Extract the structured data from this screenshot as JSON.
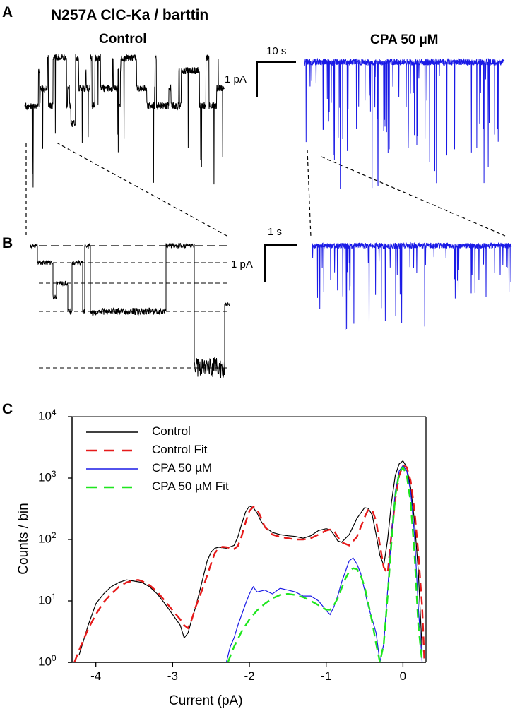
{
  "figure": {
    "title": "N257A ClC-Ka / barttin",
    "panels": {
      "a": "A",
      "b": "B",
      "c": "C"
    },
    "conditions": {
      "control": "Control",
      "cpa": "CPA 50 µM"
    },
    "scale_bars": {
      "a_time": "10 s",
      "a_current": "1 pA",
      "b_time": "1 s",
      "b_current": "1 pA"
    },
    "colors": {
      "control": "#000000",
      "cpa": "#1a1ae6",
      "control_fit": "#e61a1a",
      "cpa_fit": "#1ee61e"
    }
  },
  "chart_data": {
    "type": "line",
    "xlabel": "Current (pA)",
    "ylabel": "Counts / bin",
    "yscale": "log",
    "xlim": [
      -4.31,
      0.3
    ],
    "ylim": [
      1,
      10000
    ],
    "xticks": [
      -4,
      -3,
      -2,
      -1,
      0
    ],
    "xtick_labels": [
      "-4",
      "-3",
      "-2",
      "-1",
      "0"
    ],
    "yticks": [
      1,
      10,
      100,
      1000,
      10000
    ],
    "ytick_labels": [
      {
        "base": "10",
        "exp": "0"
      },
      {
        "base": "10",
        "exp": "1"
      },
      {
        "base": "10",
        "exp": "2"
      },
      {
        "base": "10",
        "exp": "3"
      },
      {
        "base": "10",
        "exp": "4"
      }
    ],
    "legend_position": "top-left",
    "series": [
      {
        "name": "Control",
        "style": "solid",
        "color": "#000000",
        "x": [
          -4.22,
          -4.15,
          -4.1,
          -4.05,
          -4.0,
          -3.9,
          -3.8,
          -3.7,
          -3.6,
          -3.5,
          -3.4,
          -3.3,
          -3.2,
          -3.1,
          -3.0,
          -2.9,
          -2.85,
          -2.8,
          -2.75,
          -2.7,
          -2.65,
          -2.6,
          -2.55,
          -2.5,
          -2.45,
          -2.4,
          -2.3,
          -2.2,
          -2.15,
          -2.1,
          -2.05,
          -2.0,
          -1.95,
          -1.9,
          -1.85,
          -1.8,
          -1.7,
          -1.6,
          -1.5,
          -1.4,
          -1.3,
          -1.2,
          -1.1,
          -1.0,
          -0.95,
          -0.9,
          -0.85,
          -0.8,
          -0.7,
          -0.6,
          -0.5,
          -0.45,
          -0.4,
          -0.35,
          -0.3,
          -0.25,
          -0.2,
          -0.15,
          -0.1,
          -0.05,
          0.0,
          0.05,
          0.1,
          0.15,
          0.2,
          0.25
        ],
        "y": [
          1.3,
          2.5,
          4,
          6,
          9,
          13,
          17,
          20,
          22,
          21,
          20,
          17,
          13,
          9,
          6,
          4,
          2.5,
          3,
          5,
          8,
          14,
          25,
          45,
          62,
          72,
          75,
          72,
          80,
          110,
          180,
          280,
          350,
          330,
          270,
          200,
          160,
          130,
          120,
          115,
          112,
          105,
          115,
          140,
          150,
          145,
          120,
          95,
          90,
          120,
          220,
          330,
          320,
          250,
          120,
          55,
          38,
          100,
          400,
          1100,
          1700,
          1900,
          1500,
          700,
          200,
          30,
          1.5
        ]
      },
      {
        "name": "Control Fit",
        "style": "dashed",
        "color": "#e61a1a",
        "x": [
          -4.28,
          -4.2,
          -4.1,
          -4.0,
          -3.9,
          -3.8,
          -3.7,
          -3.6,
          -3.5,
          -3.45,
          -3.4,
          -3.3,
          -3.2,
          -3.1,
          -3.0,
          -2.9,
          -2.85,
          -2.8,
          -2.75,
          -2.7,
          -2.6,
          -2.5,
          -2.45,
          -2.4,
          -2.35,
          -2.3,
          -2.2,
          -2.15,
          -2.1,
          -2.05,
          -2.0,
          -1.95,
          -1.9,
          -1.85,
          -1.8,
          -1.7,
          -1.6,
          -1.5,
          -1.4,
          -1.3,
          -1.2,
          -1.1,
          -1.0,
          -0.95,
          -0.9,
          -0.85,
          -0.8,
          -0.7,
          -0.6,
          -0.5,
          -0.45,
          -0.4,
          -0.35,
          -0.3,
          -0.25,
          -0.2,
          -0.15,
          -0.1,
          -0.05,
          0.0,
          0.05,
          0.1,
          0.15,
          0.2,
          0.25,
          0.28
        ],
        "y": [
          1,
          1.8,
          3.5,
          6,
          9.5,
          13,
          17,
          20,
          21.5,
          22,
          21,
          18,
          14,
          10,
          7,
          5,
          4,
          3.6,
          5,
          8,
          17,
          40,
          60,
          72,
          76,
          75,
          70,
          78,
          115,
          190,
          290,
          340,
          310,
          230,
          160,
          120,
          110,
          105,
          100,
          100,
          105,
          120,
          140,
          145,
          140,
          110,
          90,
          80,
          110,
          230,
          310,
          300,
          200,
          80,
          35,
          28,
          120,
          450,
          1100,
          1600,
          1500,
          900,
          300,
          60,
          8,
          1
        ]
      },
      {
        "name": "CPA 50 µM",
        "style": "solid",
        "color": "#1a1ae6",
        "x": [
          -2.3,
          -2.25,
          -2.2,
          -2.15,
          -2.1,
          -2.05,
          -2.0,
          -1.95,
          -1.9,
          -1.8,
          -1.7,
          -1.6,
          -1.5,
          -1.4,
          -1.3,
          -1.2,
          -1.1,
          -1.0,
          -0.95,
          -0.9,
          -0.85,
          -0.8,
          -0.75,
          -0.7,
          -0.65,
          -0.6,
          -0.55,
          -0.5,
          -0.45,
          -0.4,
          -0.35,
          -0.3,
          -0.25,
          -0.2,
          -0.15,
          -0.1,
          -0.05,
          0.0,
          0.05,
          0.1,
          0.15,
          0.2,
          0.25
        ],
        "y": [
          1,
          1.8,
          2.5,
          4,
          6,
          9,
          13,
          17,
          14,
          15,
          13,
          16,
          15,
          14,
          12,
          12,
          10,
          7,
          6,
          8,
          12,
          20,
          30,
          45,
          50,
          40,
          28,
          15,
          8,
          5,
          3,
          1,
          2,
          15,
          120,
          600,
          1300,
          1600,
          1300,
          600,
          120,
          8,
          1
        ]
      },
      {
        "name": "CPA 50 µM Fit",
        "style": "dashed",
        "color": "#1ee61e",
        "x": [
          -2.28,
          -2.2,
          -2.1,
          -2.0,
          -1.9,
          -1.8,
          -1.7,
          -1.6,
          -1.5,
          -1.4,
          -1.3,
          -1.2,
          -1.1,
          -1.0,
          -0.95,
          -0.9,
          -0.85,
          -0.8,
          -0.75,
          -0.7,
          -0.65,
          -0.6,
          -0.55,
          -0.5,
          -0.45,
          -0.4,
          -0.35,
          -0.3,
          -0.25,
          -0.2,
          -0.15,
          -0.1,
          -0.05,
          0.0,
          0.05,
          0.1,
          0.15,
          0.2,
          0.25
        ],
        "y": [
          1,
          1.8,
          3.2,
          5,
          7,
          9,
          11,
          12.5,
          13,
          12.5,
          11.5,
          10,
          8.5,
          7.2,
          7.2,
          8.5,
          11,
          16,
          23,
          30,
          34,
          33,
          26,
          17,
          9,
          4.5,
          2,
          1,
          2,
          12,
          90,
          500,
          1200,
          1500,
          1100,
          400,
          60,
          4,
          1
        ]
      }
    ]
  }
}
